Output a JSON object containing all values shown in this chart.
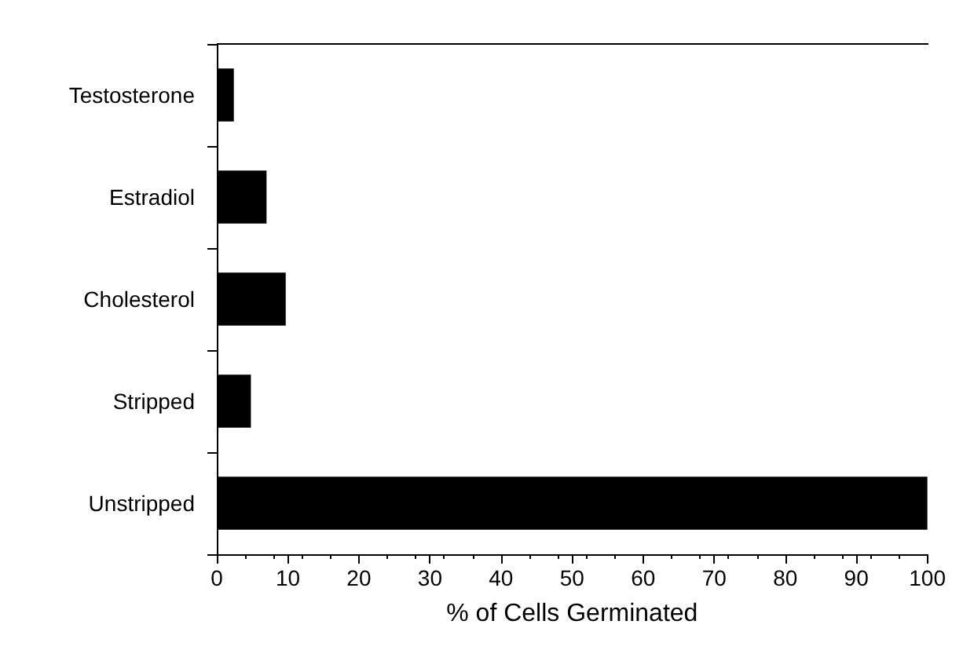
{
  "chart_data": {
    "type": "bar",
    "orientation": "horizontal",
    "xlabel": "% of Cells Germinated",
    "categories": [
      "Testosterone",
      "Estradiol",
      "Cholesterol",
      "Stripped",
      "Unstripped"
    ],
    "values": [
      2.4,
      7,
      9.7,
      4.8,
      100
    ],
    "color": "#000000",
    "xlim": [
      0,
      100
    ],
    "xticks": [
      0,
      10,
      20,
      30,
      40,
      50,
      60,
      70,
      80,
      90,
      100
    ],
    "grid": false
  }
}
